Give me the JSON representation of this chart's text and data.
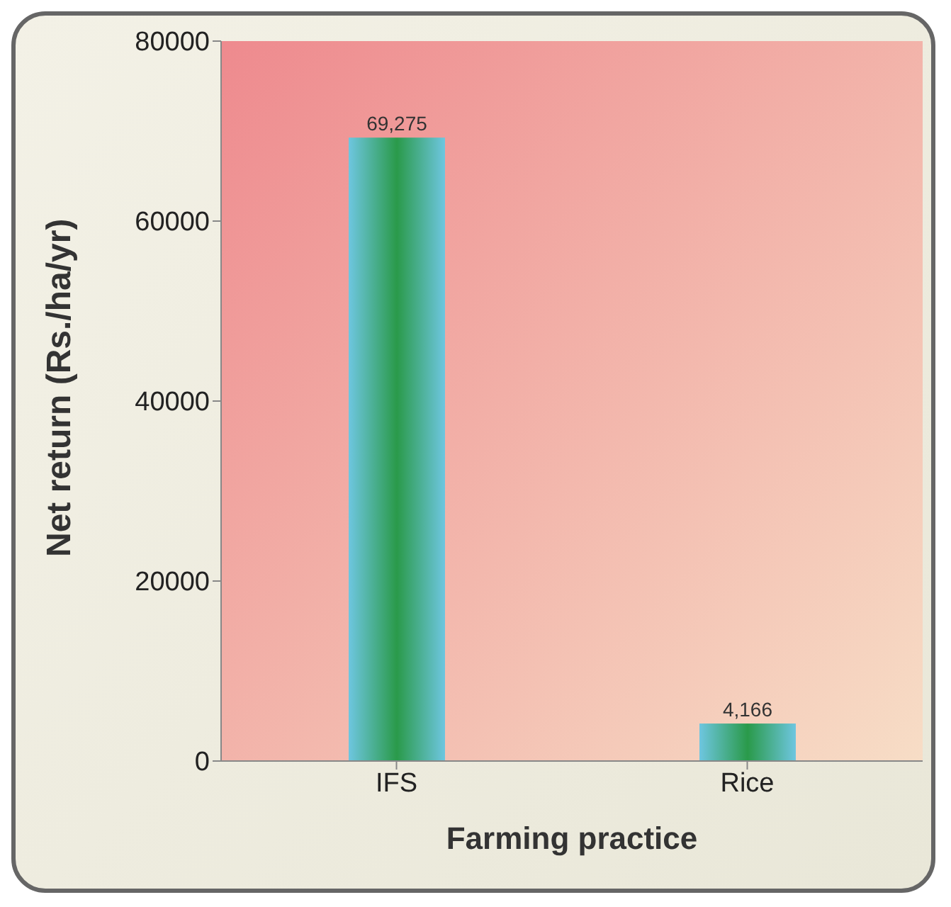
{
  "chart_data": {
    "type": "bar",
    "xlabel": "Farming practice",
    "ylabel": "Net return (Rs./ha/yr)",
    "categories": [
      "IFS",
      "Rice"
    ],
    "values": [
      69275,
      4166
    ],
    "value_labels": [
      "69,275",
      "4,166"
    ],
    "color": "#2a9a4a",
    "ylim": [
      0,
      80000
    ],
    "yticks": [
      0,
      20000,
      40000,
      60000,
      80000
    ],
    "grid": false,
    "legend": false
  }
}
